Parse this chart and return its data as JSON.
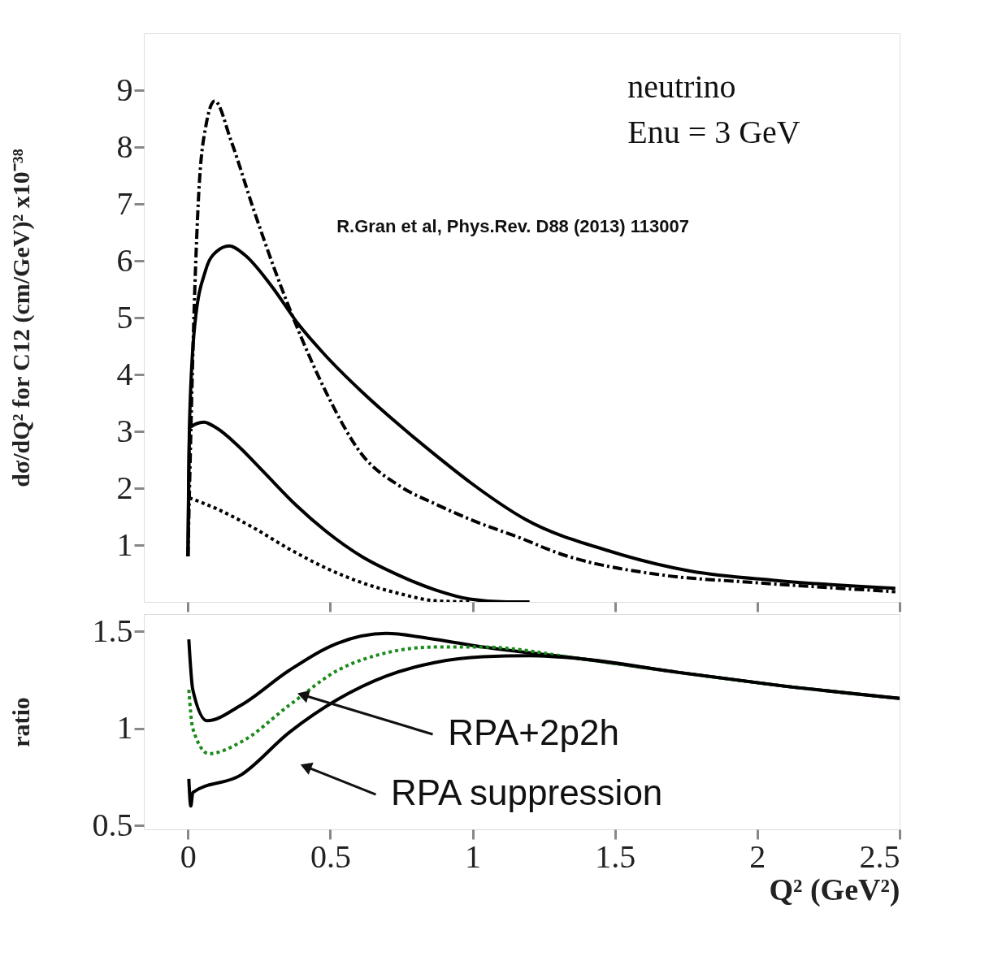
{
  "chart_data": [
    {
      "type": "line",
      "ylabel": "dσ/dQ² for C12 (cm/GeV)² x10⁻³⁸",
      "xlim": [
        -0.155,
        2.5
      ],
      "xticks": [
        0,
        0.5,
        1,
        1.5,
        2,
        2.5
      ],
      "ylim": [
        0,
        10
      ],
      "yticks": [
        1,
        2,
        3,
        4,
        5,
        6,
        7,
        8,
        9
      ],
      "tick_labels": "y",
      "grid": false,
      "series": [
        {
          "color": "#000000",
          "line_style": "dashdot",
          "x": [
            0,
            0.024,
            0.037,
            0.0625,
            0.094,
            0.152,
            0.228,
            0.305,
            0.38,
            0.483,
            0.61,
            0.74,
            0.87,
            0.992,
            1.18,
            1.283,
            1.67,
            1.962,
            2.485
          ],
          "values": [
            0.8,
            5.5,
            7.1,
            8.36,
            8.81,
            8.1,
            6.94,
            5.84,
            4.87,
            3.71,
            2.6,
            2.05,
            1.72,
            1.45,
            1.1,
            0.89,
            0.47,
            0.35,
            0.18
          ]
        },
        {
          "color": "#000000",
          "line_style": "solid",
          "x": [
            0,
            0.005,
            0.024,
            0.0625,
            0.1,
            0.145,
            0.2,
            0.29,
            0.39,
            0.48,
            0.61,
            0.74,
            0.87,
            0.992,
            1.186,
            1.477,
            1.768,
            2.06,
            2.485
          ],
          "values": [
            0.8,
            3.06,
            4.87,
            5.84,
            6.16,
            6.26,
            6.1,
            5.58,
            4.87,
            4.35,
            3.7,
            3.12,
            2.58,
            2.1,
            1.45,
            0.9,
            0.54,
            0.38,
            0.24
          ]
        },
        {
          "color": "#000000",
          "line_style": "solid",
          "x": [
            0,
            0.005,
            0.056,
            0.1,
            0.177,
            0.267,
            0.38,
            0.483,
            0.61,
            0.74,
            0.87,
            0.99,
            1.12,
            1.2
          ],
          "values": [
            0.8,
            3.06,
            3.16,
            3.06,
            2.74,
            2.28,
            1.7,
            1.25,
            0.8,
            0.47,
            0.21,
            0.05,
            0,
            0
          ]
        },
        {
          "color": "#000000",
          "line_style": "dotted",
          "x": [
            0.005,
            0.1,
            0.228,
            0.356,
            0.483,
            0.61,
            0.74,
            0.87,
            0.99
          ],
          "values": [
            1.83,
            1.64,
            1.31,
            0.93,
            0.6,
            0.34,
            0.15,
            0.02,
            0
          ]
        }
      ],
      "annotations": [
        "neutrino",
        "Enu = 3 GeV",
        "R.Gran et al, Phys.Rev. D88 (2013) 113007"
      ]
    },
    {
      "type": "line",
      "ylabel": "ratio",
      "xlabel": "Q² (GeV²)",
      "xlim": [
        -0.155,
        2.5
      ],
      "xticks": [
        0,
        0.5,
        1,
        1.5,
        2,
        2.5
      ],
      "ylim": [
        0.48,
        1.59
      ],
      "yticks": [
        0.5,
        1,
        1.5
      ],
      "grid": false,
      "series": [
        {
          "color": "#000000",
          "line_style": "solid",
          "x": [
            0.003,
            0.017,
            0.067,
            0.186,
            0.356,
            0.526,
            0.696,
            0.866,
            1.036,
            1.38,
            1.72,
            2.06,
            2.5
          ],
          "values": [
            1.46,
            1.2,
            1.04,
            1.12,
            1.3,
            1.44,
            1.49,
            1.46,
            1.42,
            1.36,
            1.29,
            1.225,
            1.155
          ]
        },
        {
          "color": "#1a8a1a",
          "line_style": "dotted",
          "x": [
            0.003,
            0.017,
            0.073,
            0.186,
            0.356,
            0.526,
            0.696,
            0.866,
            1.036,
            1.38,
            1.72,
            2.06,
            2.5
          ],
          "values": [
            1.2,
            1.0,
            0.87,
            0.93,
            1.12,
            1.3,
            1.39,
            1.42,
            1.42,
            1.36,
            1.29,
            1.225,
            1.155
          ]
        },
        {
          "color": "#000000",
          "line_style": "solid",
          "x": [
            0.003,
            0.01,
            0.017,
            0.186,
            0.356,
            0.526,
            0.696,
            0.866,
            1.036,
            1.2,
            1.38,
            1.72,
            2.06,
            2.5
          ],
          "values": [
            0.74,
            0.6,
            0.67,
            0.76,
            0.98,
            1.15,
            1.27,
            1.34,
            1.37,
            1.375,
            1.36,
            1.29,
            1.225,
            1.155
          ]
        }
      ],
      "annotations": [
        {
          "text": "RPA+2p2h",
          "x": 0.41,
          "y": 1.17
        },
        {
          "text": "RPA suppression",
          "x": 0.42,
          "y": 0.8
        }
      ]
    }
  ]
}
